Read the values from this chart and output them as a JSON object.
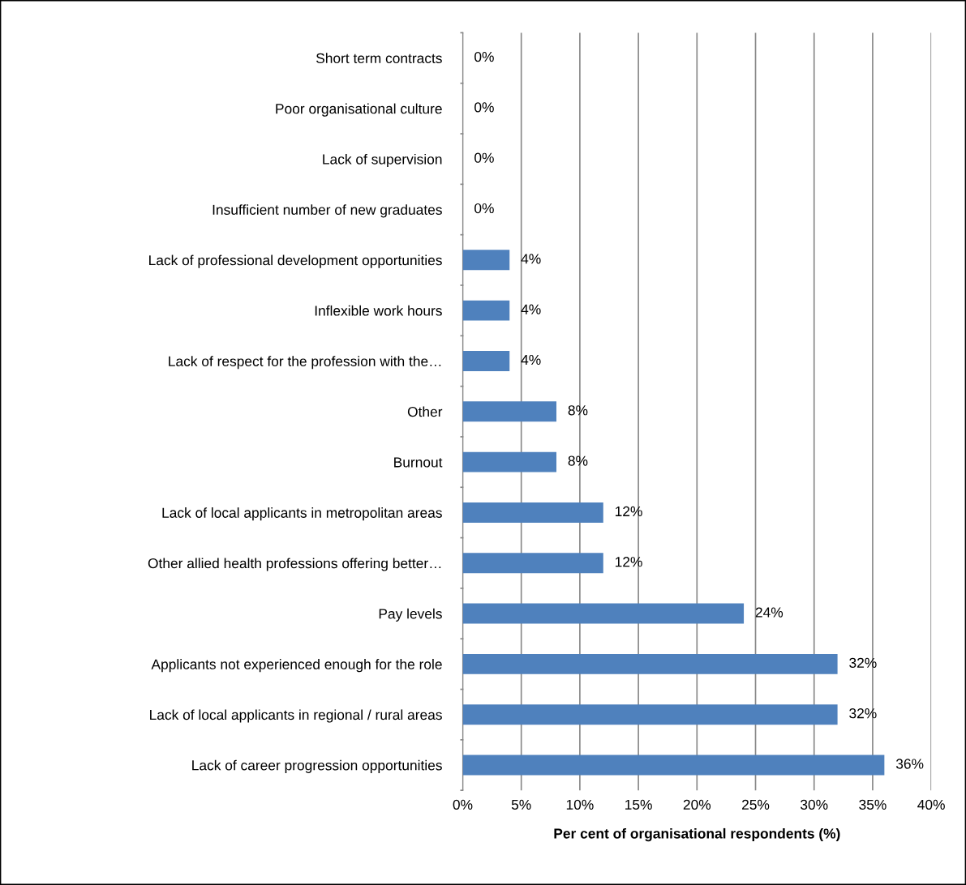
{
  "chart_data": {
    "type": "bar",
    "orientation": "horizontal",
    "xlabel": "Per cent of organisational respondents (%)",
    "categories": [
      "Short term contracts",
      "Poor organisational culture",
      "Lack of supervision",
      "Insufficient number of new graduates",
      "Lack of professional development opportunities",
      "Inflexible work hours",
      "Lack of respect for the profession with the…",
      "Other",
      "Burnout",
      "Lack of local applicants in metropolitan areas",
      "Other allied health professions offering better…",
      "Pay levels",
      "Applicants not experienced enough for the role",
      "Lack of local applicants in regional / rural areas",
      "Lack of career progression opportunities"
    ],
    "values": [
      0,
      0,
      0,
      0,
      4,
      4,
      4,
      8,
      8,
      12,
      12,
      24,
      32,
      32,
      36
    ],
    "value_labels": [
      "0%",
      "0%",
      "0%",
      "0%",
      "4%",
      "4%",
      "4%",
      "8%",
      "8%",
      "12%",
      "12%",
      "24%",
      "32%",
      "32%",
      "36%"
    ],
    "color": "#4f81bd",
    "xlim": [
      0,
      40
    ],
    "xticks": [
      {
        "value": 0,
        "label": "0%"
      },
      {
        "value": 5,
        "label": "5%"
      },
      {
        "value": 10,
        "label": "10%"
      },
      {
        "value": 15,
        "label": "15%"
      },
      {
        "value": 20,
        "label": "20%"
      },
      {
        "value": 25,
        "label": "25%"
      },
      {
        "value": 30,
        "label": "30%"
      },
      {
        "value": 35,
        "label": "35%"
      },
      {
        "value": 40,
        "label": "40%"
      }
    ],
    "grid": "x",
    "legend": false
  }
}
